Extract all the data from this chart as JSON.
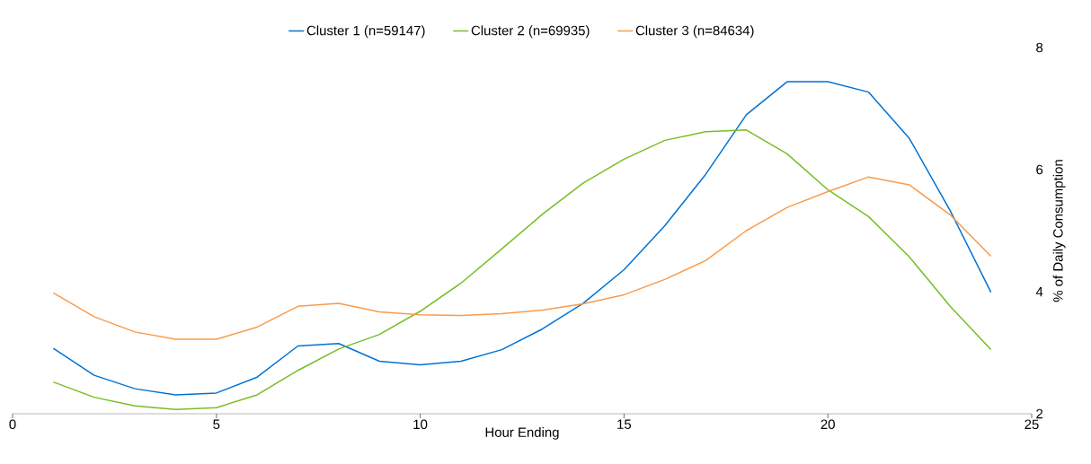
{
  "chart_data": {
    "type": "line",
    "xlabel": "Hour Ending",
    "ylabel": "% of Daily Consumption",
    "x": [
      1,
      2,
      3,
      4,
      5,
      6,
      7,
      8,
      9,
      10,
      11,
      12,
      13,
      14,
      15,
      16,
      17,
      18,
      19,
      20,
      21,
      22,
      23,
      24
    ],
    "xlim": [
      0,
      25
    ],
    "xticks": [
      0,
      5,
      10,
      15,
      20,
      25
    ],
    "ylim": [
      2,
      8
    ],
    "yticks": [
      2,
      4,
      6,
      8
    ],
    "legend": "top",
    "grid": false,
    "marker": "none",
    "line_style": "solid",
    "series": [
      {
        "name": "Cluster 1 (n=59147)",
        "color": "#0072d2",
        "values": [
          3.07,
          2.63,
          2.41,
          2.31,
          2.34,
          2.6,
          3.11,
          3.15,
          2.86,
          2.8,
          2.86,
          3.05,
          3.39,
          3.81,
          4.36,
          5.08,
          5.92,
          6.9,
          7.44,
          7.44,
          7.27,
          6.51,
          5.33,
          3.99
        ]
      },
      {
        "name": "Cluster 2 (n=69935)",
        "color": "#77bd26",
        "values": [
          2.52,
          2.27,
          2.13,
          2.07,
          2.1,
          2.31,
          2.71,
          3.06,
          3.3,
          3.68,
          4.14,
          4.7,
          5.27,
          5.78,
          6.17,
          6.48,
          6.62,
          6.65,
          6.26,
          5.67,
          5.23,
          4.57,
          3.76,
          3.05
        ]
      },
      {
        "name": "Cluster 3 (n=84634)",
        "color": "#fa9a4a",
        "values": [
          3.98,
          3.59,
          3.34,
          3.22,
          3.22,
          3.42,
          3.76,
          3.81,
          3.67,
          3.62,
          3.61,
          3.64,
          3.7,
          3.8,
          3.95,
          4.2,
          4.51,
          5.0,
          5.38,
          5.64,
          5.88,
          5.75,
          5.26,
          4.58
        ]
      }
    ]
  }
}
